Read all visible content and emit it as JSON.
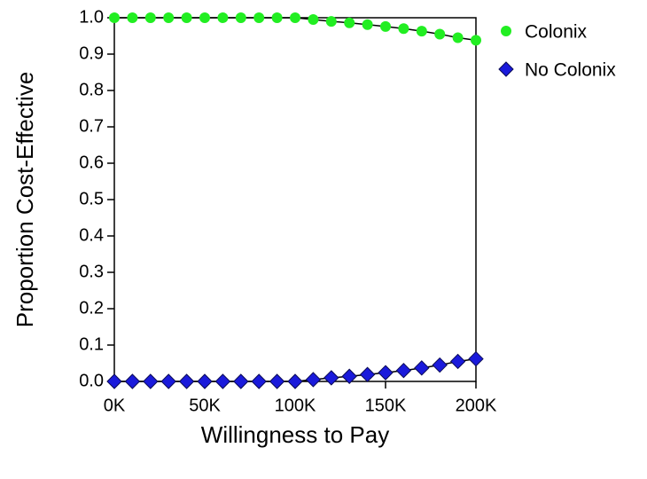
{
  "chart_data": {
    "type": "line",
    "x_label": "Willingness to Pay",
    "y_label": "Proportion Cost-Effective",
    "x": [
      0,
      10000,
      20000,
      30000,
      40000,
      50000,
      60000,
      70000,
      80000,
      90000,
      100000,
      110000,
      120000,
      130000,
      140000,
      150000,
      160000,
      170000,
      180000,
      190000,
      200000
    ],
    "series": [
      {
        "name": "Colonix",
        "color": "#22ee22",
        "marker": "circle",
        "values": [
          1.0,
          1.0,
          1.0,
          1.0,
          1.0,
          1.0,
          1.0,
          1.0,
          1.0,
          1.0,
          1.0,
          0.995,
          0.99,
          0.986,
          0.981,
          0.976,
          0.97,
          0.963,
          0.955,
          0.945,
          0.938
        ]
      },
      {
        "name": "No Colonix",
        "color": "#1a1adb",
        "marker": "diamond",
        "values": [
          0.0,
          0.0,
          0.0,
          0.0,
          0.0,
          0.0,
          0.0,
          0.0,
          0.0,
          0.0,
          0.0,
          0.005,
          0.01,
          0.014,
          0.019,
          0.024,
          0.03,
          0.037,
          0.045,
          0.055,
          0.062
        ]
      }
    ],
    "xlim": [
      0,
      200000
    ],
    "xticks": [
      {
        "value": 0,
        "label": "0K"
      },
      {
        "value": 50000,
        "label": "50K"
      },
      {
        "value": 100000,
        "label": "100K"
      },
      {
        "value": 150000,
        "label": "150K"
      },
      {
        "value": 200000,
        "label": "200K"
      }
    ],
    "ylim": [
      0,
      1
    ],
    "yticks": [
      {
        "value": 0,
        "label": "0.0"
      },
      0.1,
      0.2,
      0.3,
      0.4,
      0.5,
      0.6,
      0.7,
      0.8,
      0.9,
      {
        "value": 1,
        "label": "1.0"
      }
    ],
    "legend": "right"
  }
}
